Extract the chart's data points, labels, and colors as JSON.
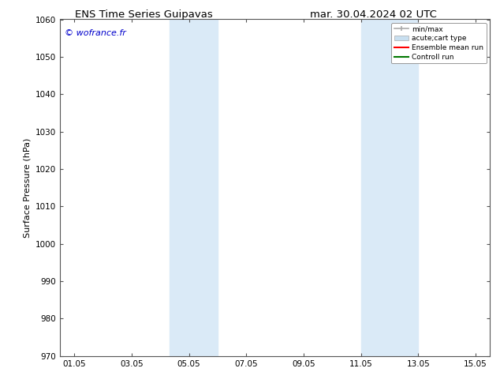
{
  "title_left": "ENS Time Series Guipavas",
  "title_right": "mar. 30.04.2024 02 UTC",
  "ylabel": "Surface Pressure (hPa)",
  "ylim": [
    970,
    1060
  ],
  "yticks": [
    970,
    980,
    990,
    1000,
    1010,
    1020,
    1030,
    1040,
    1050,
    1060
  ],
  "xlim": [
    0,
    15.0
  ],
  "xtick_labels": [
    "01.05",
    "03.05",
    "05.05",
    "07.05",
    "09.05",
    "11.05",
    "13.05",
    "15.05"
  ],
  "xtick_positions": [
    0.5,
    2.5,
    4.5,
    6.5,
    8.5,
    10.5,
    12.5,
    14.5
  ],
  "shaded_regions": [
    {
      "xmin": 3.83,
      "xmax": 5.5,
      "color": "#daeaf7"
    },
    {
      "xmin": 10.5,
      "xmax": 12.5,
      "color": "#daeaf7"
    }
  ],
  "watermark": "© wofrance.fr",
  "watermark_color": "#0000cc",
  "background_color": "#ffffff",
  "legend_items": [
    {
      "label": "min/max",
      "color": "#aaaaaa",
      "lw": 1.2,
      "type": "errorbar"
    },
    {
      "label": "acute;cart type",
      "color": "#c8dff0",
      "lw": 8,
      "type": "band"
    },
    {
      "label": "Ensemble mean run",
      "color": "#ff0000",
      "lw": 1.5,
      "type": "line"
    },
    {
      "label": "Controll run",
      "color": "#007700",
      "lw": 1.5,
      "type": "line"
    }
  ],
  "grid_color": "#cccccc",
  "title_fontsize": 9.5,
  "label_fontsize": 8,
  "tick_fontsize": 7.5,
  "watermark_fontsize": 8
}
